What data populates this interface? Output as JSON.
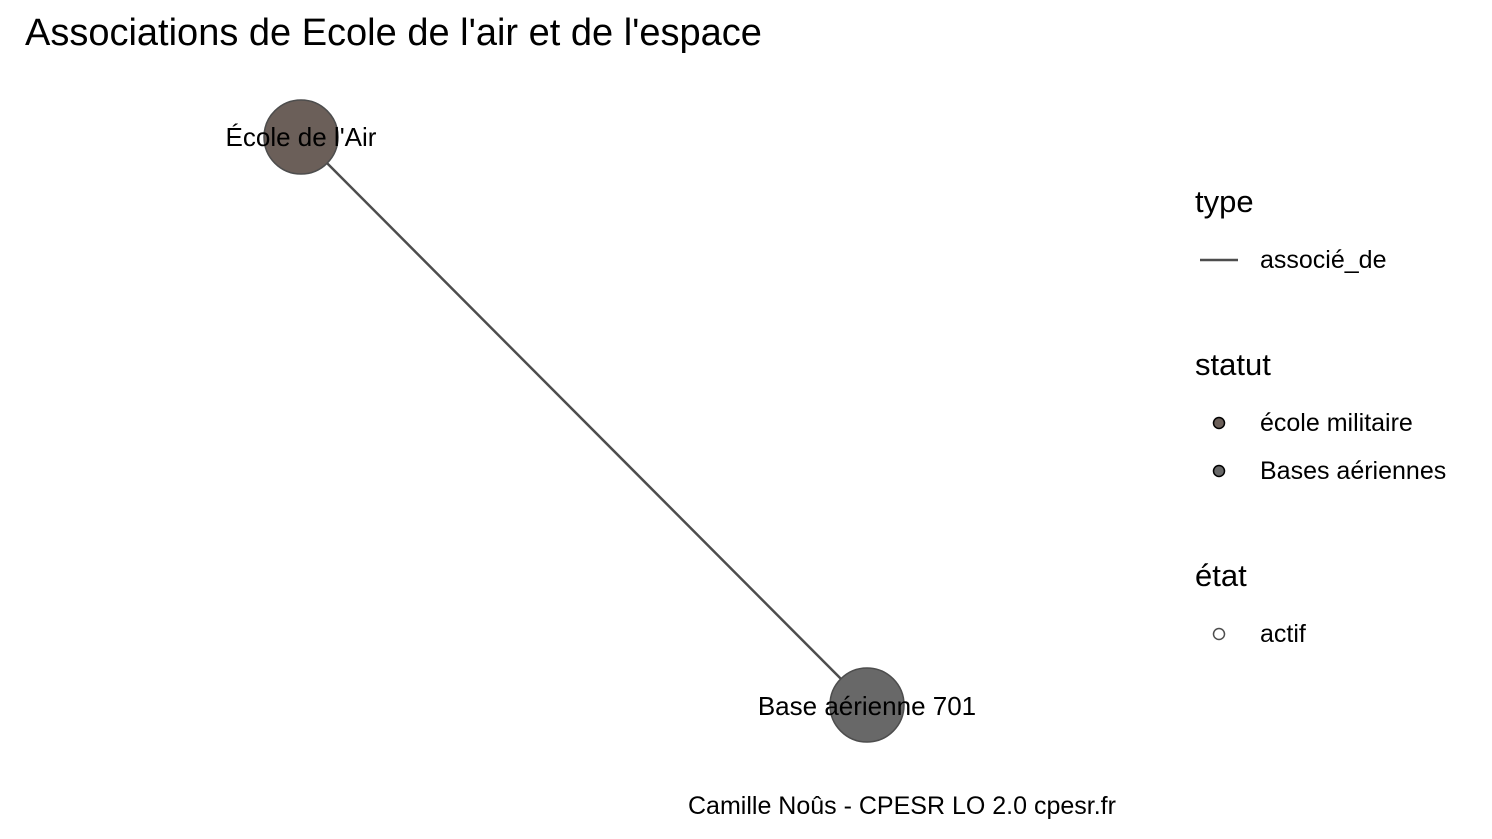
{
  "title": "Associations de Ecole de l'air et de l'espace",
  "graph": {
    "nodes": [
      {
        "id": "ecole_air",
        "label": "École de l'Air",
        "statut": "école militaire",
        "etat": "actif",
        "color": "#6b5f59"
      },
      {
        "id": "ba701",
        "label": "Base aérienne 701",
        "statut": "Bases aériennes",
        "etat": "actif",
        "color": "#686868"
      }
    ],
    "edges": [
      {
        "from": "ecole_air",
        "to": "ba701",
        "type": "associé_de",
        "color": "#4d4d4d"
      }
    ]
  },
  "legend": {
    "type": {
      "title": "type",
      "items": [
        {
          "label": "associé_de",
          "color": "#4d4d4d"
        }
      ]
    },
    "statut": {
      "title": "statut",
      "items": [
        {
          "label": "école militaire",
          "color": "#6b5f59"
        },
        {
          "label": "Bases aériennes",
          "color": "#686868"
        }
      ]
    },
    "etat": {
      "title": "état",
      "items": [
        {
          "label": "actif",
          "color": "#ffffff"
        }
      ]
    }
  },
  "caption": "Camille Noûs - CPESR LO 2.0 cpesr.fr"
}
